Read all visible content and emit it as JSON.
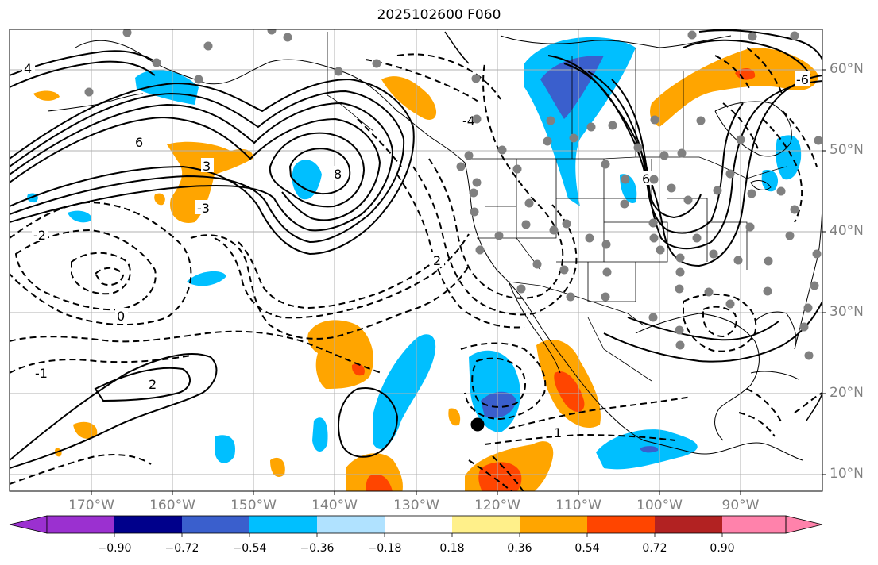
{
  "title": "2025102600 F060",
  "lat_labels": [
    "60°N",
    "50°N",
    "40°N",
    "30°N",
    "20°N",
    "10°N"
  ],
  "lon_labels": [
    "170°W",
    "160°W",
    "150°W",
    "140°W",
    "130°W",
    "120°W",
    "110°W",
    "100°W",
    "90°W"
  ],
  "colorbar": {
    "labels": [
      "−0.90",
      "−0.72",
      "−0.54",
      "−0.36",
      "−0.18",
      "0.18",
      "0.36",
      "0.54",
      "0.72",
      "0.90"
    ],
    "colors": [
      "#9b30d0",
      "#00008b",
      "#3a5fcd",
      "#00bfff",
      "#b0e2ff",
      "#ffffff",
      "#fff08a",
      "#ffa500",
      "#ff4500",
      "#b22222",
      "#ff82ab"
    ]
  },
  "fill_colors": {
    "light_blue": "#00bfff",
    "mid_blue": "#3a5fcd",
    "orange": "#ffa500",
    "red_orange": "#ff4500"
  },
  "contour_labels": [
    "4",
    "6",
    "8",
    "3",
    "-3",
    "2",
    "-2",
    "0",
    "-1",
    "1",
    "-4",
    "6",
    "2",
    "-6"
  ],
  "map_features": [
    "coastlines",
    "country-borders",
    "us-state-borders",
    "lat-lon-grid",
    "station-dots",
    "marker-dot"
  ]
}
